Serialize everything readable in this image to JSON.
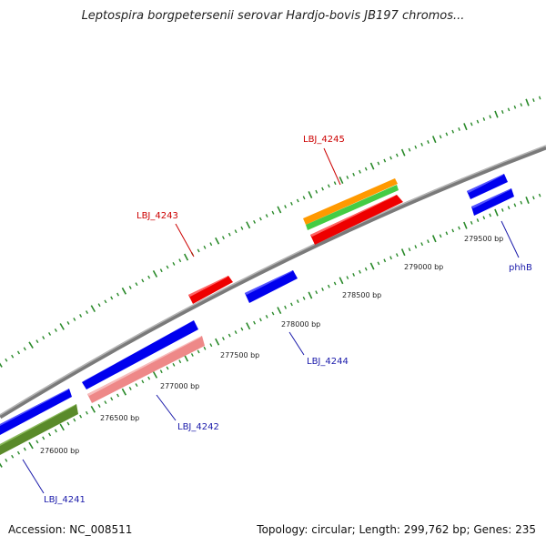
{
  "title": "Leptospira borgpetersenii serovar Hardjo-bovis JB197 chromos...",
  "footer": {
    "accession": "Accession: NC_008511",
    "topology": "Topology: circular; Length: 299,762 bp; Genes: 235"
  },
  "colors": {
    "background": "#ffffff",
    "backbone": "#8c8c8c",
    "tick": "#2a8a2a",
    "label_red": "#cc0000",
    "label_blue": "#1a1aaa",
    "gene_blue": "#0000ee",
    "gene_red": "#ee0000",
    "gene_pink": "#ee8888",
    "gene_olive": "#5a8a2a",
    "gene_orange": "#ff9900",
    "gene_green": "#44cc44"
  },
  "scale_labels": [
    "276000 bp",
    "276500 bp",
    "277000 bp",
    "277500 bp",
    "278000 bp",
    "278500 bp",
    "279000 bp",
    "279500 bp"
  ],
  "gene_labels": [
    {
      "id": "LBJ_4245",
      "color": "red"
    },
    {
      "id": "LBJ_4243",
      "color": "red"
    },
    {
      "id": "LBJ_4244",
      "color": "blue"
    },
    {
      "id": "LBJ_4242",
      "color": "blue"
    },
    {
      "id": "LBJ_4241",
      "color": "blue"
    },
    {
      "id": "phhB",
      "color": "blue"
    }
  ]
}
